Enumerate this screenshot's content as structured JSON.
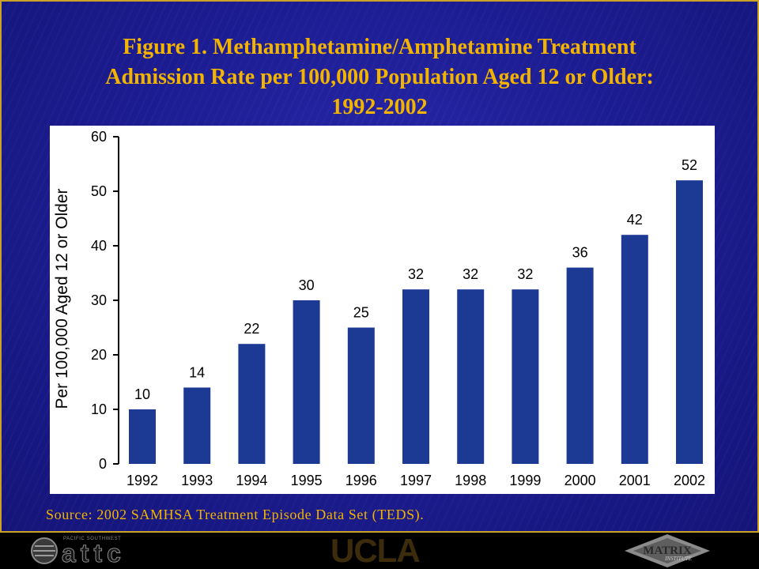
{
  "chart_data": {
    "type": "bar",
    "title_lines": [
      "Figure 1. Methamphetamine/Amphetamine Treatment",
      "Admission Rate per 100,000 Population Aged 12 or Older:",
      "1992-2002"
    ],
    "categories": [
      "1992",
      "1993",
      "1994",
      "1995",
      "1996",
      "1997",
      "1998",
      "1999",
      "2000",
      "2001",
      "2002"
    ],
    "values": [
      10,
      14,
      22,
      30,
      25,
      32,
      32,
      32,
      36,
      42,
      52
    ],
    "data_labels": true,
    "xlabel": "",
    "ylabel": "Per 100,000 Aged 12 or Older",
    "ylim": [
      0,
      60
    ],
    "yticks": [
      0,
      10,
      20,
      30,
      40,
      50,
      60
    ],
    "grid": false,
    "bar_color": "#1c3a93"
  },
  "source": "Source: 2002 SAMHSA Treatment Episode Data Set (TEDS).",
  "footer": {
    "attc_tagline": "PACIFIC SOUTHWEST",
    "attc": "attc",
    "ucla": "UCLA",
    "matrix": "MATRIX",
    "matrix_sub": "INSTITUTE"
  },
  "colors": {
    "background": "#1d1d94",
    "title": "#f3b400",
    "border": "#c9a227",
    "chart_panel": "#ffffff",
    "footer": "#000000"
  }
}
